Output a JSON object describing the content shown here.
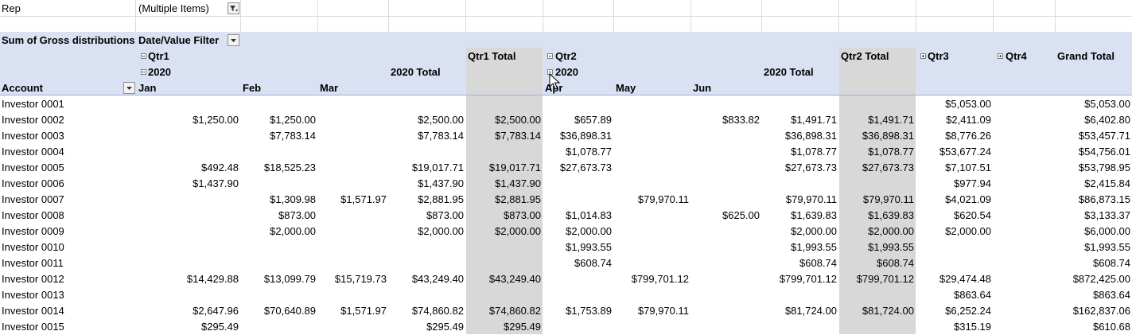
{
  "page_filter": {
    "label": "Rep",
    "value": "(Multiple Items)",
    "icon": "filter-applied-icon"
  },
  "pivot_header": {
    "values_label": "Sum of Gross distributions",
    "column_filter_label": "Date/Value Filter",
    "row_label": "Account",
    "quarters": {
      "q1": "Qtr1",
      "q1_total": "Qtr1 Total",
      "q2": "Qtr2",
      "q2_total": "Qtr2 Total",
      "q3": "Qtr3",
      "q4": "Qtr4",
      "grand_total": "Grand Total"
    },
    "years": {
      "q1_year": "2020",
      "q1_year_total": "2020 Total",
      "q2_year": "2020",
      "q2_year_total": "2020 Total"
    },
    "months": {
      "jan": "Jan",
      "feb": "Feb",
      "mar": "Mar",
      "apr": "Apr",
      "may": "May",
      "jun": "Jun"
    }
  },
  "rows": [
    {
      "account": "Investor 0001",
      "jan": "",
      "feb": "",
      "mar": "",
      "y1": "",
      "q1t": "",
      "apr": "",
      "may": "",
      "jun": "",
      "y2": "",
      "q2t": "",
      "q3": "$5,053.00",
      "q4": "",
      "gt": "$5,053.00"
    },
    {
      "account": "Investor 0002",
      "jan": "$1,250.00",
      "feb": "$1,250.00",
      "mar": "",
      "y1": "$2,500.00",
      "q1t": "$2,500.00",
      "apr": "$657.89",
      "may": "",
      "jun": "$833.82",
      "y2": "$1,491.71",
      "q2t": "$1,491.71",
      "q3": "$2,411.09",
      "q4": "",
      "gt": "$6,402.80"
    },
    {
      "account": "Investor 0003",
      "jan": "",
      "feb": "$7,783.14",
      "mar": "",
      "y1": "$7,783.14",
      "q1t": "$7,783.14",
      "apr": "$36,898.31",
      "may": "",
      "jun": "",
      "y2": "$36,898.31",
      "q2t": "$36,898.31",
      "q3": "$8,776.26",
      "q4": "",
      "gt": "$53,457.71"
    },
    {
      "account": "Investor 0004",
      "jan": "",
      "feb": "",
      "mar": "",
      "y1": "",
      "q1t": "",
      "apr": "$1,078.77",
      "may": "",
      "jun": "",
      "y2": "$1,078.77",
      "q2t": "$1,078.77",
      "q3": "$53,677.24",
      "q4": "",
      "gt": "$54,756.01"
    },
    {
      "account": "Investor 0005",
      "jan": "$492.48",
      "feb": "$18,525.23",
      "mar": "",
      "y1": "$19,017.71",
      "q1t": "$19,017.71",
      "apr": "$27,673.73",
      "may": "",
      "jun": "",
      "y2": "$27,673.73",
      "q2t": "$27,673.73",
      "q3": "$7,107.51",
      "q4": "",
      "gt": "$53,798.95"
    },
    {
      "account": "Investor 0006",
      "jan": "$1,437.90",
      "feb": "",
      "mar": "",
      "y1": "$1,437.90",
      "q1t": "$1,437.90",
      "apr": "",
      "may": "",
      "jun": "",
      "y2": "",
      "q2t": "",
      "q3": "$977.94",
      "q4": "",
      "gt": "$2,415.84"
    },
    {
      "account": "Investor 0007",
      "jan": "",
      "feb": "$1,309.98",
      "mar": "$1,571.97",
      "y1": "$2,881.95",
      "q1t": "$2,881.95",
      "apr": "",
      "may": "$79,970.11",
      "jun": "",
      "y2": "$79,970.11",
      "q2t": "$79,970.11",
      "q3": "$4,021.09",
      "q4": "",
      "gt": "$86,873.15"
    },
    {
      "account": "Investor 0008",
      "jan": "",
      "feb": "$873.00",
      "mar": "",
      "y1": "$873.00",
      "q1t": "$873.00",
      "apr": "$1,014.83",
      "may": "",
      "jun": "$625.00",
      "y2": "$1,639.83",
      "q2t": "$1,639.83",
      "q3": "$620.54",
      "q4": "",
      "gt": "$3,133.37"
    },
    {
      "account": "Investor 0009",
      "jan": "",
      "feb": "$2,000.00",
      "mar": "",
      "y1": "$2,000.00",
      "q1t": "$2,000.00",
      "apr": "$2,000.00",
      "may": "",
      "jun": "",
      "y2": "$2,000.00",
      "q2t": "$2,000.00",
      "q3": "$2,000.00",
      "q4": "",
      "gt": "$6,000.00"
    },
    {
      "account": "Investor 0010",
      "jan": "",
      "feb": "",
      "mar": "",
      "y1": "",
      "q1t": "",
      "apr": "$1,993.55",
      "may": "",
      "jun": "",
      "y2": "$1,993.55",
      "q2t": "$1,993.55",
      "q3": "",
      "q4": "",
      "gt": "$1,993.55"
    },
    {
      "account": "Investor 0011",
      "jan": "",
      "feb": "",
      "mar": "",
      "y1": "",
      "q1t": "",
      "apr": "$608.74",
      "may": "",
      "jun": "",
      "y2": "$608.74",
      "q2t": "$608.74",
      "q3": "",
      "q4": "",
      "gt": "$608.74"
    },
    {
      "account": "Investor 0012",
      "jan": "$14,429.88",
      "feb": "$13,099.79",
      "mar": "$15,719.73",
      "y1": "$43,249.40",
      "q1t": "$43,249.40",
      "apr": "",
      "may": "$799,701.12",
      "jun": "",
      "y2": "$799,701.12",
      "q2t": "$799,701.12",
      "q3": "$29,474.48",
      "q4": "",
      "gt": "$872,425.00"
    },
    {
      "account": "Investor 0013",
      "jan": "",
      "feb": "",
      "mar": "",
      "y1": "",
      "q1t": "",
      "apr": "",
      "may": "",
      "jun": "",
      "y2": "",
      "q2t": "",
      "q3": "$863.64",
      "q4": "",
      "gt": "$863.64"
    },
    {
      "account": "Investor 0014",
      "jan": "$2,647.96",
      "feb": "$70,640.89",
      "mar": "$1,571.97",
      "y1": "$74,860.82",
      "q1t": "$74,860.82",
      "apr": "$1,753.89",
      "may": "$79,970.11",
      "jun": "",
      "y2": "$81,724.00",
      "q2t": "$81,724.00",
      "q3": "$6,252.24",
      "q4": "",
      "gt": "$162,837.06"
    },
    {
      "account": "Investor 0015",
      "jan": "$295.49",
      "feb": "",
      "mar": "",
      "y1": "$295.49",
      "q1t": "$295.49",
      "apr": "",
      "may": "",
      "jun": "",
      "y2": "",
      "q2t": "",
      "q3": "$315.19",
      "q4": "",
      "gt": "$610.68"
    }
  ],
  "colors": {
    "header_band": "#dae1f3",
    "total_column": "#d8d8d8",
    "gridline": "#d9d9d9"
  }
}
